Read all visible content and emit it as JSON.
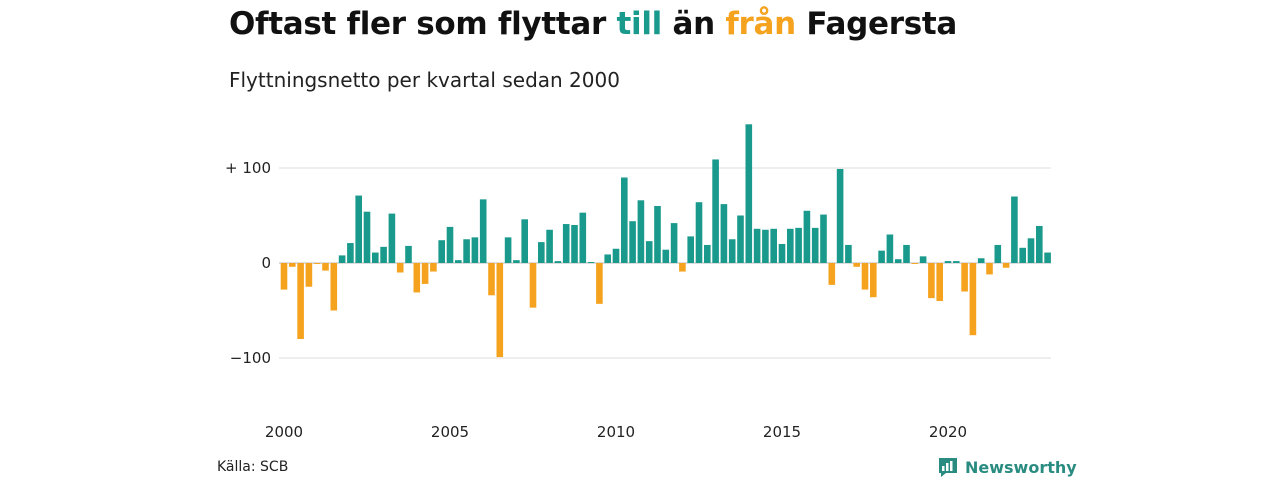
{
  "title": {
    "part1": "Oftast fler som flyttar ",
    "to_word": "till",
    "part2": " än ",
    "from_word": "från",
    "part3": " Fagersta"
  },
  "subtitle": "Flyttningsnetto per kvartal sedan 2000",
  "source": "Källa: SCB",
  "brand": {
    "name": "Newsworthy",
    "icon": "newsworthy-logo-icon"
  },
  "colors": {
    "positive": "#1a9a8c",
    "negative": "#f5a31f",
    "grid": "#dddddd"
  },
  "chart_data": {
    "type": "bar",
    "title": "Oftast fler som flyttar till än från Fagersta",
    "subtitle": "Flyttningsnetto per kvartal sedan 2000",
    "start": "2000 Q1",
    "interval": "quarter",
    "ylim": [
      -100,
      150
    ],
    "yticks": [
      {
        "value": 100,
        "label": "+ 100"
      },
      {
        "value": 0,
        "label": "0"
      },
      {
        "value": -100,
        "label": "−100"
      }
    ],
    "xticks": [
      {
        "index": 0,
        "label": "2000"
      },
      {
        "index": 20,
        "label": "2005"
      },
      {
        "index": 40,
        "label": "2010"
      },
      {
        "index": 60,
        "label": "2015"
      },
      {
        "index": 80,
        "label": "2020"
      }
    ],
    "grid": true,
    "values": [
      -28,
      -4,
      -80,
      -25,
      -1,
      -8,
      -50,
      8,
      21,
      71,
      54,
      11,
      17,
      52,
      -10,
      18,
      -31,
      -22,
      -9,
      24,
      38,
      3,
      25,
      27,
      67,
      -34,
      -99,
      27,
      3,
      46,
      -47,
      22,
      35,
      2,
      41,
      40,
      53,
      1,
      -43,
      9,
      15,
      90,
      44,
      66,
      23,
      60,
      14,
      42,
      -9,
      28,
      64,
      19,
      109,
      62,
      25,
      50,
      146,
      36,
      35,
      36,
      20,
      36,
      37,
      55,
      37,
      51,
      -23,
      99,
      19,
      -4,
      -28,
      -36,
      13,
      30,
      4,
      19,
      -1,
      7,
      -37,
      -40,
      2,
      2,
      -30,
      -76,
      5,
      -12,
      19,
      -5,
      70,
      16,
      26,
      39,
      11
    ]
  }
}
